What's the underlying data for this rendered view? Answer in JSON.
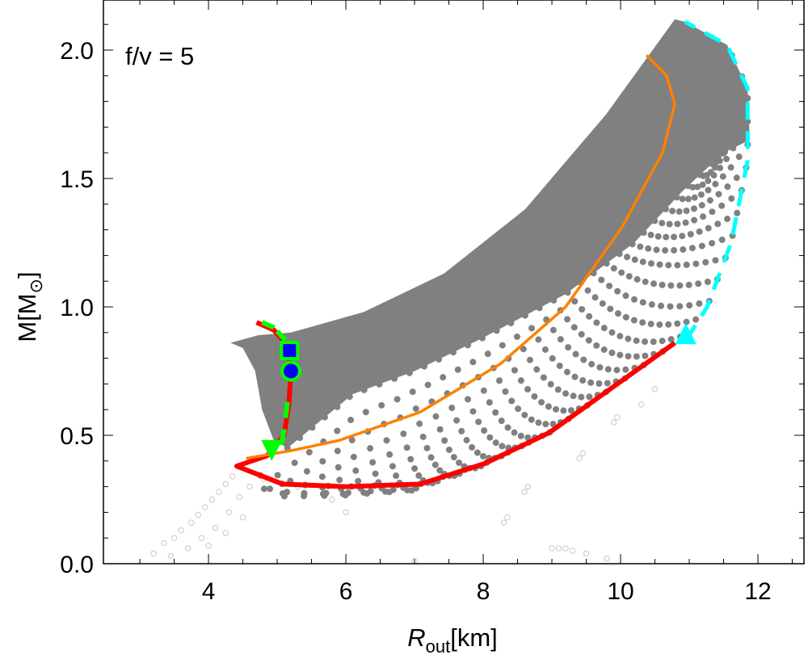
{
  "chart_data": {
    "type": "scatter",
    "annotation": "f/v = 5",
    "xlabel": {
      "main": "R",
      "sub": "out",
      "unit": "[km]"
    },
    "ylabel": {
      "main": "M[M",
      "sub": "⊙",
      "close": "]"
    },
    "xlim": [
      2.47,
      12.67
    ],
    "ylim": [
      0,
      2.195
    ],
    "x_ticks": [
      "4",
      "6",
      "8",
      "10",
      "12"
    ],
    "x_tick_values": [
      4,
      6,
      8,
      10,
      12
    ],
    "y_ticks": [
      "0.0",
      "0.5",
      "1.0",
      "1.5",
      "2.0"
    ],
    "y_tick_values": [
      0,
      0.5,
      1.0,
      1.5,
      2.0
    ],
    "grid": false,
    "colors": {
      "dense": "#808080",
      "open": "#c8c8c8",
      "red": "#ff0000",
      "orange": "#ff8000",
      "cyan": "#00ffff",
      "green": "#00ff00",
      "blue": "#0000ff"
    },
    "dense_region": [
      [
        4.32,
        0.86
      ],
      [
        4.73,
        0.89
      ],
      [
        5.2,
        0.9
      ],
      [
        6.26,
        0.98
      ],
      [
        7.43,
        1.13
      ],
      [
        8.61,
        1.38
      ],
      [
        9.79,
        1.75
      ],
      [
        10.79,
        2.12
      ],
      [
        10.94,
        2.11
      ],
      [
        11.55,
        2.02
      ],
      [
        11.85,
        1.85
      ],
      [
        11.88,
        1.65
      ],
      [
        11.5,
        1.6
      ],
      [
        10.9,
        1.45
      ],
      [
        10.2,
        1.25
      ],
      [
        9.2,
        1.05
      ],
      [
        8.0,
        0.88
      ],
      [
        7.0,
        0.75
      ],
      [
        6.1,
        0.66
      ],
      [
        5.6,
        0.55
      ],
      [
        5.15,
        0.45
      ],
      [
        4.95,
        0.48
      ],
      [
        4.78,
        0.6
      ],
      [
        4.68,
        0.75
      ],
      [
        4.5,
        0.84
      ]
    ],
    "arc_inner": [
      [
        5.15,
        0.45
      ],
      [
        5.6,
        0.55
      ],
      [
        6.1,
        0.66
      ],
      [
        7.0,
        0.75
      ],
      [
        8.0,
        0.88
      ],
      [
        9.2,
        1.05
      ],
      [
        10.2,
        1.25
      ],
      [
        10.9,
        1.45
      ],
      [
        11.5,
        1.6
      ]
    ],
    "series": [
      {
        "name": "red",
        "style": "solid",
        "points": [
          [
            4.7,
            0.94
          ],
          [
            4.95,
            0.91
          ],
          [
            5.15,
            0.85
          ],
          [
            5.2,
            0.75
          ],
          [
            5.17,
            0.62
          ],
          [
            5.1,
            0.5
          ],
          [
            4.85,
            0.42
          ],
          [
            4.41,
            0.38
          ],
          [
            5.08,
            0.31
          ],
          [
            6.0,
            0.3
          ],
          [
            7.08,
            0.31
          ],
          [
            8.02,
            0.39
          ],
          [
            8.96,
            0.51
          ],
          [
            9.9,
            0.69
          ],
          [
            10.79,
            0.86
          ]
        ]
      },
      {
        "name": "orange",
        "style": "solid",
        "points": [
          [
            4.55,
            0.41
          ],
          [
            5.2,
            0.44
          ],
          [
            5.9,
            0.48
          ],
          [
            7.08,
            0.59
          ],
          [
            8.26,
            0.78
          ],
          [
            9.2,
            1.0
          ],
          [
            10.02,
            1.31
          ],
          [
            10.61,
            1.6
          ],
          [
            10.79,
            1.79
          ],
          [
            10.67,
            1.9
          ],
          [
            10.38,
            1.98
          ]
        ]
      },
      {
        "name": "cyan",
        "style": "dashed",
        "points": [
          [
            10.95,
            0.87
          ],
          [
            11.26,
            1.0
          ],
          [
            11.61,
            1.25
          ],
          [
            11.85,
            1.57
          ],
          [
            11.85,
            1.85
          ],
          [
            11.55,
            2.02
          ],
          [
            10.94,
            2.11
          ]
        ]
      },
      {
        "name": "green-top",
        "style": "dashed",
        "points": [
          [
            4.78,
            0.94
          ],
          [
            4.95,
            0.92
          ],
          [
            5.12,
            0.87
          ]
        ]
      },
      {
        "name": "green-bottom",
        "style": "dashed",
        "points": [
          [
            5.15,
            0.63
          ],
          [
            5.1,
            0.52
          ],
          [
            5.05,
            0.45
          ]
        ]
      }
    ],
    "markers": [
      {
        "shape": "triangle-up",
        "x": 10.95,
        "y": 0.88,
        "fill": "#00ffff"
      },
      {
        "shape": "triangle-down",
        "x": 4.92,
        "y": 0.45,
        "fill": "#00ff00"
      },
      {
        "shape": "square",
        "x": 5.18,
        "y": 0.83,
        "fill": "#0000ff",
        "stroke": "#00ff00"
      },
      {
        "shape": "circle",
        "x": 5.2,
        "y": 0.75,
        "fill": "#0000ff",
        "stroke": "#00ff00"
      }
    ],
    "open_points": [
      [
        3.2,
        0.04
      ],
      [
        3.35,
        0.08
      ],
      [
        3.5,
        0.1
      ],
      [
        3.6,
        0.13
      ],
      [
        3.75,
        0.16
      ],
      [
        3.85,
        0.19
      ],
      [
        3.95,
        0.22
      ],
      [
        4.05,
        0.25
      ],
      [
        4.15,
        0.28
      ],
      [
        4.25,
        0.31
      ],
      [
        4.35,
        0.34
      ],
      [
        3.45,
        0.03
      ],
      [
        3.7,
        0.06
      ],
      [
        3.9,
        0.1
      ],
      [
        4.1,
        0.14
      ],
      [
        4.3,
        0.2
      ],
      [
        4.45,
        0.26
      ],
      [
        4.6,
        0.3
      ],
      [
        4.0,
        0.07
      ],
      [
        4.25,
        0.12
      ],
      [
        4.5,
        0.18
      ],
      [
        6.0,
        0.2
      ],
      [
        7.0,
        0.01
      ],
      [
        8.3,
        0.16
      ],
      [
        8.35,
        0.18
      ],
      [
        8.6,
        0.28
      ],
      [
        8.65,
        0.3
      ],
      [
        9.4,
        0.41
      ],
      [
        9.45,
        0.43
      ],
      [
        9.9,
        0.55
      ],
      [
        9.95,
        0.57
      ],
      [
        10.3,
        0.62
      ],
      [
        10.5,
        0.68
      ],
      [
        9.0,
        0.06
      ],
      [
        9.1,
        0.06
      ],
      [
        9.2,
        0.06
      ],
      [
        9.3,
        0.05
      ],
      [
        9.5,
        0.04
      ],
      [
        9.8,
        0.02
      ],
      [
        5.3,
        0.3
      ],
      [
        5.8,
        0.25
      ],
      [
        4.8,
        0.33
      ]
    ]
  }
}
